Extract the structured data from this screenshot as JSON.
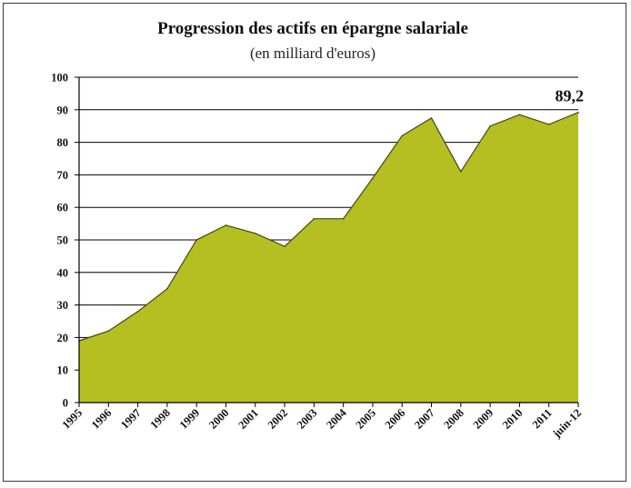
{
  "chart_data": {
    "type": "area",
    "title": "Progression des actifs en épargne salariale",
    "subtitle": "(en milliard d'euros)",
    "xlabel": "",
    "ylabel": "",
    "categories": [
      "1995",
      "1996",
      "1997",
      "1998",
      "1999",
      "2000",
      "2001",
      "2002",
      "2003",
      "2004",
      "2005",
      "2006",
      "2007",
      "2008",
      "2009",
      "2010",
      "2011",
      "juin-12"
    ],
    "series": [
      {
        "values": [
          19,
          22,
          28,
          35,
          50,
          54.5,
          52,
          48,
          56.5,
          56.5,
          69,
          82,
          87.5,
          71,
          85,
          88.5,
          85.5,
          89.2
        ]
      }
    ],
    "ylim": [
      0,
      100
    ],
    "yticks": [
      0,
      10,
      20,
      30,
      40,
      50,
      60,
      70,
      80,
      90,
      100
    ],
    "ytick_labels": [
      "0",
      "10",
      "20",
      "30",
      "40",
      "50",
      "60",
      "70",
      "80",
      "90",
      "100"
    ],
    "grid": true,
    "annotations": [
      {
        "text": "89,2",
        "category": "juin-12",
        "value": 89.2
      }
    ],
    "colors": {
      "fill": "#b5bf22",
      "stroke": "#3e4a10",
      "grid": "#000000"
    }
  }
}
